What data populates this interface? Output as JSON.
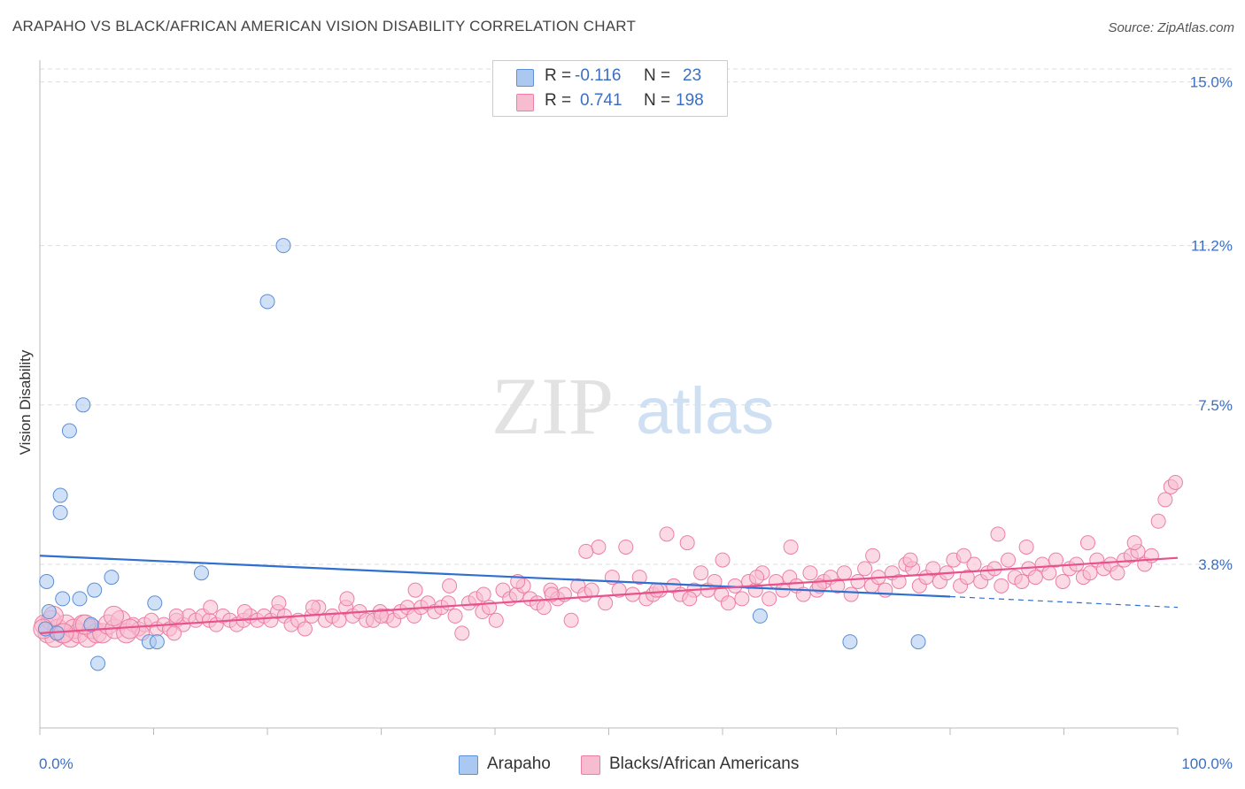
{
  "title": "ARAPAHO VS BLACK/AFRICAN AMERICAN VISION DISABILITY CORRELATION CHART",
  "source": "Source: ZipAtlas.com",
  "watermark": {
    "zip": "ZIP",
    "atlas": "atlas"
  },
  "legend": {
    "rows": [
      {
        "r_label": "R =",
        "r_value": "-0.116",
        "n_label": "N =",
        "n_value": "23"
      },
      {
        "r_label": "R =",
        "r_value": "0.741",
        "n_label": "N =",
        "n_value": "198"
      }
    ]
  },
  "bottom_legend": [
    {
      "label": "Arapaho"
    },
    {
      "label": "Blacks/African Americans"
    }
  ],
  "colors": {
    "arapaho_fill": "#aac8f0",
    "arapaho_stroke": "#5b8fd6",
    "arapaho_line": "#2f6fcf",
    "black_fill": "#f7bcd0",
    "black_stroke": "#ec7fa4",
    "black_line": "#e8528a",
    "axis_text": "#3b6fc4",
    "grid": "#dddddd"
  },
  "chart_data": {
    "type": "scatter",
    "title": "ARAPAHO VS BLACK/AFRICAN AMERICAN VISION DISABILITY CORRELATION CHART",
    "xlabel": "",
    "ylabel": "Vision Disability",
    "xlim": [
      0,
      100
    ],
    "ylim": [
      0,
      15.3
    ],
    "x_tick_labels": [
      "0.0%",
      "100.0%"
    ],
    "y_ticks": [
      3.8,
      7.5,
      11.2,
      15.0
    ],
    "y_tick_labels": [
      "3.8%",
      "7.5%",
      "11.2%",
      "15.0%"
    ],
    "grid": true,
    "series": [
      {
        "name": "Arapaho",
        "r": -0.116,
        "n": 23,
        "trend": {
          "x": [
            0,
            80
          ],
          "y": [
            4.0,
            3.05
          ],
          "dashed_to_x": 100,
          "dashed_to_y": 2.8
        },
        "points": [
          [
            0.5,
            2.3
          ],
          [
            0.8,
            2.7
          ],
          [
            0.6,
            3.4
          ],
          [
            1.8,
            5.0
          ],
          [
            1.8,
            5.4
          ],
          [
            2.6,
            6.9
          ],
          [
            3.8,
            7.5
          ],
          [
            2.0,
            3.0
          ],
          [
            3.5,
            3.0
          ],
          [
            4.5,
            2.4
          ],
          [
            4.8,
            3.2
          ],
          [
            6.3,
            3.5
          ],
          [
            5.1,
            1.5
          ],
          [
            9.6,
            2.0
          ],
          [
            10.3,
            2.0
          ],
          [
            10.1,
            2.9
          ],
          [
            14.2,
            3.6
          ],
          [
            20.0,
            9.9
          ],
          [
            21.4,
            11.2
          ],
          [
            63.3,
            2.6
          ],
          [
            71.2,
            2.0
          ],
          [
            77.2,
            2.0
          ],
          [
            1.5,
            2.2
          ]
        ]
      },
      {
        "name": "Blacks/African Americans",
        "r": 0.741,
        "n": 198,
        "trend": {
          "x": [
            0,
            100
          ],
          "y": [
            2.2,
            3.95
          ]
        },
        "points": [
          [
            0.4,
            2.4
          ],
          [
            0.7,
            2.2
          ],
          [
            1.0,
            2.5
          ],
          [
            1.3,
            2.1
          ],
          [
            1.6,
            2.3
          ],
          [
            2.0,
            2.2
          ],
          [
            2.3,
            2.4
          ],
          [
            2.7,
            2.1
          ],
          [
            3.0,
            2.3
          ],
          [
            3.4,
            2.2
          ],
          [
            3.8,
            2.4
          ],
          [
            4.2,
            2.1
          ],
          [
            4.6,
            2.3
          ],
          [
            5.0,
            2.2
          ],
          [
            5.5,
            2.2
          ],
          [
            6.0,
            2.4
          ],
          [
            6.6,
            2.3
          ],
          [
            7.1,
            2.5
          ],
          [
            7.6,
            2.2
          ],
          [
            8.2,
            2.4
          ],
          [
            8.7,
            2.3
          ],
          [
            9.2,
            2.4
          ],
          [
            9.8,
            2.5
          ],
          [
            10.3,
            2.3
          ],
          [
            10.9,
            2.4
          ],
          [
            11.4,
            2.3
          ],
          [
            12.0,
            2.5
          ],
          [
            12.6,
            2.4
          ],
          [
            13.1,
            2.6
          ],
          [
            13.7,
            2.5
          ],
          [
            14.3,
            2.6
          ],
          [
            14.9,
            2.5
          ],
          [
            15.5,
            2.4
          ],
          [
            16.1,
            2.6
          ],
          [
            16.7,
            2.5
          ],
          [
            17.3,
            2.4
          ],
          [
            17.9,
            2.5
          ],
          [
            18.5,
            2.6
          ],
          [
            19.1,
            2.5
          ],
          [
            19.7,
            2.6
          ],
          [
            20.3,
            2.5
          ],
          [
            20.9,
            2.7
          ],
          [
            21.5,
            2.6
          ],
          [
            22.1,
            2.4
          ],
          [
            22.7,
            2.5
          ],
          [
            23.3,
            2.3
          ],
          [
            23.9,
            2.6
          ],
          [
            24.5,
            2.8
          ],
          [
            25.1,
            2.5
          ],
          [
            25.7,
            2.6
          ],
          [
            26.3,
            2.5
          ],
          [
            26.9,
            2.8
          ],
          [
            27.5,
            2.6
          ],
          [
            28.1,
            2.7
          ],
          [
            28.7,
            2.5
          ],
          [
            29.3,
            2.5
          ],
          [
            29.9,
            2.7
          ],
          [
            30.5,
            2.6
          ],
          [
            31.1,
            2.5
          ],
          [
            31.7,
            2.7
          ],
          [
            32.3,
            2.8
          ],
          [
            32.9,
            2.6
          ],
          [
            33.5,
            2.8
          ],
          [
            34.1,
            2.9
          ],
          [
            34.7,
            2.7
          ],
          [
            35.3,
            2.8
          ],
          [
            35.9,
            2.9
          ],
          [
            36.5,
            2.6
          ],
          [
            37.1,
            2.2
          ],
          [
            37.7,
            2.9
          ],
          [
            38.3,
            3.0
          ],
          [
            38.9,
            2.7
          ],
          [
            39.5,
            2.8
          ],
          [
            40.1,
            2.5
          ],
          [
            40.7,
            3.2
          ],
          [
            41.3,
            3.0
          ],
          [
            41.9,
            3.1
          ],
          [
            42.5,
            3.3
          ],
          [
            43.1,
            3.0
          ],
          [
            43.7,
            2.9
          ],
          [
            44.3,
            2.8
          ],
          [
            44.9,
            3.2
          ],
          [
            45.5,
            3.0
          ],
          [
            46.1,
            3.1
          ],
          [
            46.7,
            2.5
          ],
          [
            47.3,
            3.3
          ],
          [
            47.9,
            3.1
          ],
          [
            48.5,
            3.2
          ],
          [
            49.1,
            4.2
          ],
          [
            49.7,
            2.9
          ],
          [
            50.3,
            3.5
          ],
          [
            50.9,
            3.2
          ],
          [
            51.5,
            4.2
          ],
          [
            52.1,
            3.1
          ],
          [
            52.7,
            3.5
          ],
          [
            53.3,
            3.0
          ],
          [
            53.9,
            3.1
          ],
          [
            54.5,
            3.2
          ],
          [
            55.1,
            4.5
          ],
          [
            55.7,
            3.3
          ],
          [
            56.3,
            3.1
          ],
          [
            56.9,
            4.3
          ],
          [
            57.5,
            3.2
          ],
          [
            58.1,
            3.6
          ],
          [
            58.7,
            3.2
          ],
          [
            59.3,
            3.4
          ],
          [
            59.9,
            3.1
          ],
          [
            60.5,
            2.9
          ],
          [
            61.1,
            3.3
          ],
          [
            61.7,
            3.0
          ],
          [
            62.3,
            3.4
          ],
          [
            62.9,
            3.2
          ],
          [
            63.5,
            3.6
          ],
          [
            64.1,
            3.0
          ],
          [
            64.7,
            3.4
          ],
          [
            65.3,
            3.2
          ],
          [
            65.9,
            3.5
          ],
          [
            66.5,
            3.3
          ],
          [
            67.1,
            3.1
          ],
          [
            67.7,
            3.6
          ],
          [
            68.3,
            3.2
          ],
          [
            68.9,
            3.4
          ],
          [
            69.5,
            3.5
          ],
          [
            70.1,
            3.3
          ],
          [
            70.7,
            3.6
          ],
          [
            71.3,
            3.1
          ],
          [
            71.9,
            3.4
          ],
          [
            72.5,
            3.7
          ],
          [
            73.1,
            3.3
          ],
          [
            73.7,
            3.5
          ],
          [
            74.3,
            3.2
          ],
          [
            74.9,
            3.6
          ],
          [
            75.5,
            3.4
          ],
          [
            76.1,
            3.8
          ],
          [
            76.7,
            3.7
          ],
          [
            77.3,
            3.3
          ],
          [
            77.9,
            3.5
          ],
          [
            78.5,
            3.7
          ],
          [
            79.1,
            3.4
          ],
          [
            79.7,
            3.6
          ],
          [
            80.3,
            3.9
          ],
          [
            80.9,
            3.3
          ],
          [
            81.5,
            3.5
          ],
          [
            82.1,
            3.8
          ],
          [
            82.7,
            3.4
          ],
          [
            83.3,
            3.6
          ],
          [
            83.9,
            3.7
          ],
          [
            84.5,
            3.3
          ],
          [
            85.1,
            3.9
          ],
          [
            85.7,
            3.5
          ],
          [
            86.3,
            3.4
          ],
          [
            86.9,
            3.7
          ],
          [
            87.5,
            3.5
          ],
          [
            88.1,
            3.8
          ],
          [
            88.7,
            3.6
          ],
          [
            89.3,
            3.9
          ],
          [
            89.9,
            3.4
          ],
          [
            90.5,
            3.7
          ],
          [
            91.1,
            3.8
          ],
          [
            91.7,
            3.5
          ],
          [
            92.3,
            3.6
          ],
          [
            92.9,
            3.9
          ],
          [
            93.5,
            3.7
          ],
          [
            94.1,
            3.8
          ],
          [
            94.7,
            3.6
          ],
          [
            95.3,
            3.9
          ],
          [
            95.9,
            4.0
          ],
          [
            96.5,
            4.1
          ],
          [
            97.1,
            3.8
          ],
          [
            97.7,
            4.0
          ],
          [
            98.3,
            4.8
          ],
          [
            98.9,
            5.3
          ],
          [
            99.4,
            5.6
          ],
          [
            99.8,
            5.7
          ],
          [
            96.2,
            4.3
          ],
          [
            92.1,
            4.3
          ],
          [
            86.7,
            4.2
          ],
          [
            84.2,
            4.5
          ],
          [
            81.2,
            4.0
          ],
          [
            76.5,
            3.9
          ],
          [
            73.2,
            4.0
          ],
          [
            68.5,
            3.3
          ],
          [
            66.0,
            4.2
          ],
          [
            63.0,
            3.5
          ],
          [
            60.0,
            3.9
          ],
          [
            57.1,
            3.0
          ],
          [
            54.2,
            3.2
          ],
          [
            48.0,
            4.1
          ],
          [
            45.0,
            3.1
          ],
          [
            42.0,
            3.4
          ],
          [
            39.0,
            3.1
          ],
          [
            36.0,
            3.3
          ],
          [
            33.0,
            3.2
          ],
          [
            30.0,
            2.6
          ],
          [
            27.0,
            3.0
          ],
          [
            24.0,
            2.8
          ],
          [
            21.0,
            2.9
          ],
          [
            18.0,
            2.7
          ],
          [
            15.0,
            2.8
          ],
          [
            12.0,
            2.6
          ],
          [
            9.0,
            2.2
          ],
          [
            6.5,
            2.6
          ],
          [
            4.0,
            2.4
          ],
          [
            1.2,
            2.6
          ],
          [
            0.3,
            2.3
          ],
          [
            2.1,
            2.2
          ],
          [
            7.9,
            2.3
          ],
          [
            11.8,
            2.2
          ]
        ]
      }
    ]
  }
}
